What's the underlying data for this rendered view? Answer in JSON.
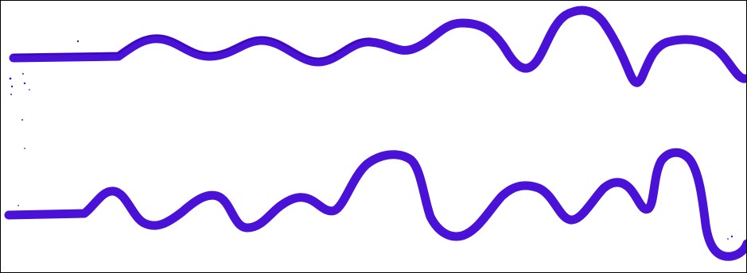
{
  "image": {
    "background_color": "#ffffff",
    "border_color": "#000000",
    "stroke_color": "#4a12d6",
    "stroke_color_dark": "#3a08b8"
  }
}
